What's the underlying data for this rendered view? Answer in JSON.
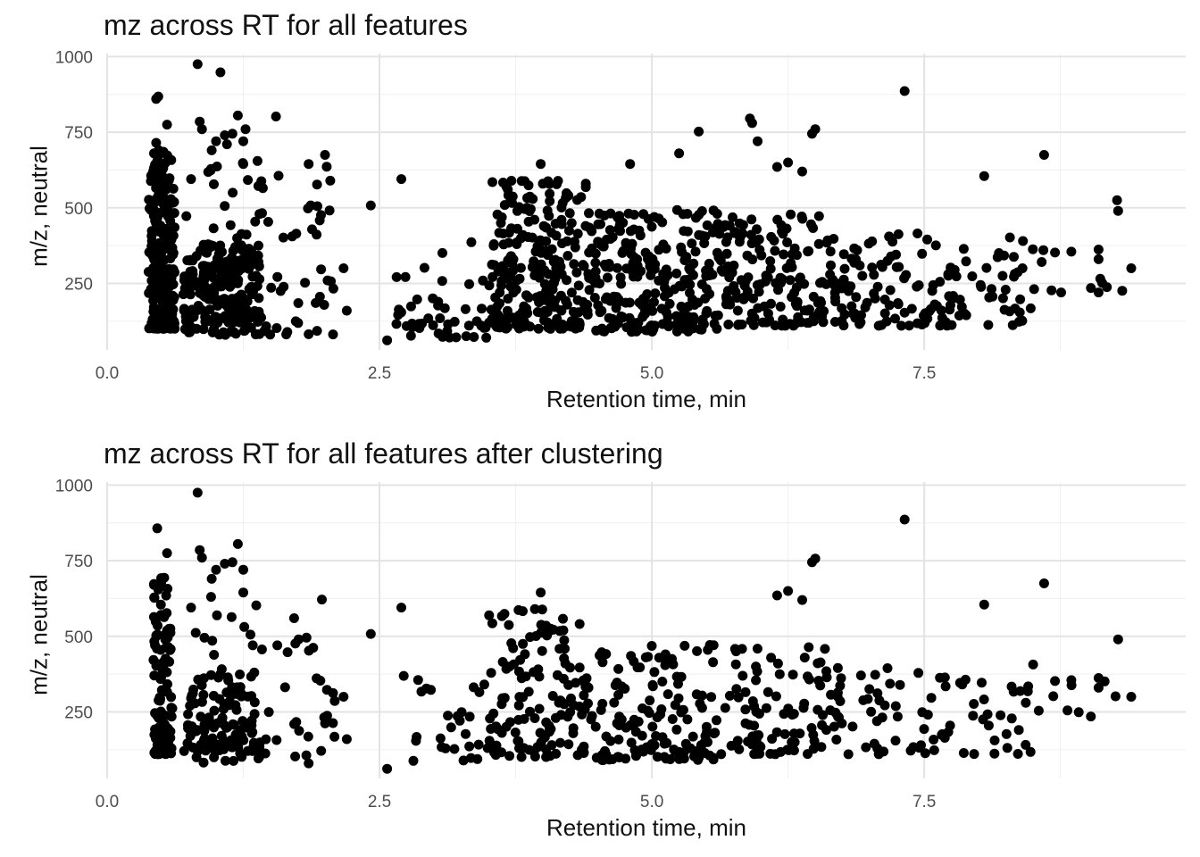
{
  "chart_data": [
    {
      "type": "scatter",
      "title": "mz across RT for all features",
      "xlabel": "Retention time, min",
      "ylabel": "m/z, neutral",
      "xlim": [
        0.0,
        9.9
      ],
      "ylim": [
        30,
        1010
      ],
      "x_ticks": [
        "0.0",
        "2.5",
        "5.0",
        "7.5"
      ],
      "y_ticks": [
        "250",
        "500",
        "750",
        "1000"
      ],
      "grid": true,
      "legend": "none",
      "point_color": "#000000",
      "density_regions": [
        {
          "x": [
            0.38,
            0.62
          ],
          "y": [
            100,
            720
          ],
          "n": 220
        },
        {
          "x": [
            0.7,
            1.4
          ],
          "y": [
            120,
            380
          ],
          "n": 190
        },
        {
          "x": [
            0.7,
            2.1
          ],
          "y": [
            80,
            660
          ],
          "n": 110
        },
        {
          "x": [
            2.6,
            3.5
          ],
          "y": [
            70,
            390
          ],
          "n": 45
        },
        {
          "x": [
            3.5,
            4.4
          ],
          "y": [
            100,
            590
          ],
          "n": 230
        },
        {
          "x": [
            4.4,
            5.6
          ],
          "y": [
            90,
            500
          ],
          "n": 250
        },
        {
          "x": [
            5.6,
            6.6
          ],
          "y": [
            110,
            480
          ],
          "n": 150
        },
        {
          "x": [
            6.6,
            8.5
          ],
          "y": [
            110,
            420
          ],
          "n": 150
        },
        {
          "x": [
            8.5,
            9.4
          ],
          "y": [
            220,
            370
          ],
          "n": 10
        }
      ],
      "points": [
        {
          "x": 0.83,
          "y": 975
        },
        {
          "x": 1.04,
          "y": 948
        },
        {
          "x": 7.32,
          "y": 886
        },
        {
          "x": 0.47,
          "y": 868
        },
        {
          "x": 0.45,
          "y": 860
        },
        {
          "x": 0.85,
          "y": 785
        },
        {
          "x": 0.87,
          "y": 760
        },
        {
          "x": 1.2,
          "y": 805
        },
        {
          "x": 1.55,
          "y": 802
        },
        {
          "x": 5.9,
          "y": 795
        },
        {
          "x": 5.92,
          "y": 780
        },
        {
          "x": 6.5,
          "y": 760
        },
        {
          "x": 6.47,
          "y": 745
        },
        {
          "x": 5.97,
          "y": 720
        },
        {
          "x": 5.43,
          "y": 752
        },
        {
          "x": 0.55,
          "y": 775
        },
        {
          "x": 0.43,
          "y": 680
        },
        {
          "x": 1.0,
          "y": 720
        },
        {
          "x": 1.08,
          "y": 740
        },
        {
          "x": 1.15,
          "y": 745
        },
        {
          "x": 1.25,
          "y": 720
        },
        {
          "x": 1.27,
          "y": 760
        },
        {
          "x": 1.1,
          "y": 710
        },
        {
          "x": 0.96,
          "y": 690
        },
        {
          "x": 8.6,
          "y": 675
        },
        {
          "x": 1.85,
          "y": 645
        },
        {
          "x": 2.0,
          "y": 675
        },
        {
          "x": 1.25,
          "y": 645
        },
        {
          "x": 1.38,
          "y": 655
        },
        {
          "x": 0.77,
          "y": 595
        },
        {
          "x": 2.7,
          "y": 595
        },
        {
          "x": 3.98,
          "y": 645
        },
        {
          "x": 4.8,
          "y": 645
        },
        {
          "x": 6.15,
          "y": 635
        },
        {
          "x": 6.25,
          "y": 650
        },
        {
          "x": 6.38,
          "y": 620
        },
        {
          "x": 8.05,
          "y": 605
        },
        {
          "x": 5.25,
          "y": 680
        },
        {
          "x": 2.42,
          "y": 508
        },
        {
          "x": 9.27,
          "y": 525
        },
        {
          "x": 9.28,
          "y": 490
        },
        {
          "x": 9.4,
          "y": 300
        },
        {
          "x": 9.03,
          "y": 235
        },
        {
          "x": 9.1,
          "y": 330
        },
        {
          "x": 9.1,
          "y": 362
        },
        {
          "x": 8.85,
          "y": 355
        },
        {
          "x": 8.7,
          "y": 352
        },
        {
          "x": 2.2,
          "y": 160
        },
        {
          "x": 2.17,
          "y": 300
        },
        {
          "x": 2.57,
          "y": 62
        },
        {
          "x": 1.85,
          "y": 82
        },
        {
          "x": 0.98,
          "y": 100
        },
        {
          "x": 0.82,
          "y": 100
        },
        {
          "x": 1.16,
          "y": 90
        }
      ]
    },
    {
      "type": "scatter",
      "title": "mz across RT for all features after clustering",
      "xlabel": "Retention time, min",
      "ylabel": "m/z, neutral",
      "xlim": [
        0.0,
        9.9
      ],
      "ylim": [
        30,
        1010
      ],
      "x_ticks": [
        "0.0",
        "2.5",
        "5.0",
        "7.5"
      ],
      "y_ticks": [
        "250",
        "500",
        "750",
        "1000"
      ],
      "grid": true,
      "legend": "none",
      "point_color": "#000000",
      "density_regions": [
        {
          "x": [
            0.42,
            0.6
          ],
          "y": [
            110,
            700
          ],
          "n": 110
        },
        {
          "x": [
            0.7,
            1.4
          ],
          "y": [
            120,
            380
          ],
          "n": 100
        },
        {
          "x": [
            0.7,
            2.1
          ],
          "y": [
            80,
            640
          ],
          "n": 70
        },
        {
          "x": [
            2.6,
            3.5
          ],
          "y": [
            80,
            380
          ],
          "n": 28
        },
        {
          "x": [
            3.5,
            4.4
          ],
          "y": [
            100,
            590
          ],
          "n": 130
        },
        {
          "x": [
            4.4,
            5.6
          ],
          "y": [
            90,
            480
          ],
          "n": 140
        },
        {
          "x": [
            5.6,
            6.6
          ],
          "y": [
            110,
            470
          ],
          "n": 85
        },
        {
          "x": [
            6.6,
            8.5
          ],
          "y": [
            110,
            410
          ],
          "n": 90
        },
        {
          "x": [
            8.5,
            9.4
          ],
          "y": [
            220,
            370
          ],
          "n": 7
        }
      ],
      "points": [
        {
          "x": 0.83,
          "y": 975
        },
        {
          "x": 7.32,
          "y": 886
        },
        {
          "x": 0.46,
          "y": 857
        },
        {
          "x": 0.85,
          "y": 785
        },
        {
          "x": 0.87,
          "y": 760
        },
        {
          "x": 1.2,
          "y": 805
        },
        {
          "x": 0.55,
          "y": 775
        },
        {
          "x": 1.0,
          "y": 720
        },
        {
          "x": 1.08,
          "y": 740
        },
        {
          "x": 1.15,
          "y": 745
        },
        {
          "x": 1.25,
          "y": 720
        },
        {
          "x": 0.96,
          "y": 690
        },
        {
          "x": 6.5,
          "y": 757
        },
        {
          "x": 6.47,
          "y": 745
        },
        {
          "x": 0.43,
          "y": 670
        },
        {
          "x": 8.6,
          "y": 675
        },
        {
          "x": 1.25,
          "y": 645
        },
        {
          "x": 0.77,
          "y": 595
        },
        {
          "x": 2.7,
          "y": 595
        },
        {
          "x": 3.98,
          "y": 645
        },
        {
          "x": 6.15,
          "y": 635
        },
        {
          "x": 6.25,
          "y": 650
        },
        {
          "x": 6.38,
          "y": 620
        },
        {
          "x": 8.05,
          "y": 605
        },
        {
          "x": 2.42,
          "y": 508
        },
        {
          "x": 9.28,
          "y": 490
        },
        {
          "x": 9.4,
          "y": 300
        },
        {
          "x": 9.03,
          "y": 235
        },
        {
          "x": 9.1,
          "y": 330
        },
        {
          "x": 9.1,
          "y": 362
        },
        {
          "x": 8.85,
          "y": 355
        },
        {
          "x": 8.7,
          "y": 352
        },
        {
          "x": 2.2,
          "y": 160
        },
        {
          "x": 2.17,
          "y": 300
        },
        {
          "x": 2.57,
          "y": 62
        },
        {
          "x": 1.85,
          "y": 80
        },
        {
          "x": 0.98,
          "y": 100
        },
        {
          "x": 0.82,
          "y": 100
        },
        {
          "x": 1.16,
          "y": 88
        }
      ]
    }
  ]
}
